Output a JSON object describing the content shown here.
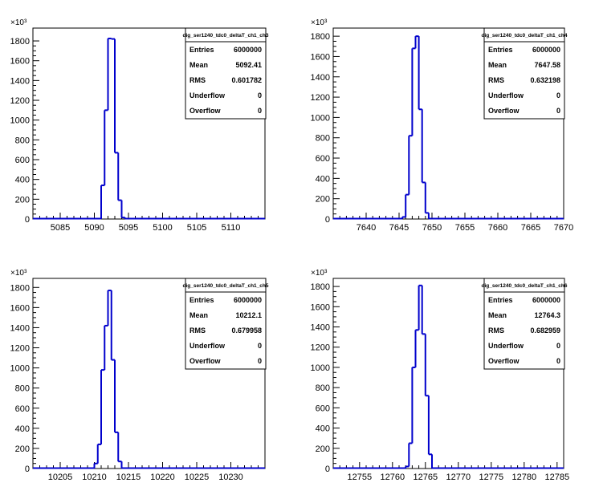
{
  "chart_data": [
    {
      "type": "bar",
      "stats_title": "dig_ser1240_tdc0_deltaT_ch1_ch3",
      "stats": [
        {
          "label": "Entries",
          "value": "6000000"
        },
        {
          "label": "Mean",
          "value": "5092.41"
        },
        {
          "label": "RMS",
          "value": "0.601782"
        },
        {
          "label": "Underflow",
          "value": "0"
        },
        {
          "label": "Overflow",
          "value": "0"
        }
      ],
      "xlim": [
        5081,
        5115
      ],
      "ylim": [
        0,
        1930
      ],
      "y_multiplier": "×10³",
      "xticks": [
        5085,
        5090,
        5095,
        5100,
        5105,
        5110
      ],
      "yticks": [
        0,
        200,
        400,
        600,
        800,
        1000,
        1200,
        1400,
        1600,
        1800
      ],
      "bin_edges": [
        5091,
        5091.5,
        5092,
        5092.5,
        5093,
        5093.5,
        5094,
        5094.5
      ],
      "values": [
        340,
        1100,
        1825,
        1820,
        670,
        190,
        15
      ]
    },
    {
      "type": "bar",
      "stats_title": "dig_ser1240_tdc0_deltaT_ch1_ch4",
      "stats": [
        {
          "label": "Entries",
          "value": "6000000"
        },
        {
          "label": "Mean",
          "value": "7647.58"
        },
        {
          "label": "RMS",
          "value": "0.632198"
        },
        {
          "label": "Underflow",
          "value": "0"
        },
        {
          "label": "Overflow",
          "value": "0"
        }
      ],
      "xlim": [
        7635,
        7670
      ],
      "ylim": [
        0,
        1880
      ],
      "y_multiplier": "×10³",
      "xticks": [
        7640,
        7645,
        7650,
        7655,
        7660,
        7665,
        7670
      ],
      "yticks": [
        0,
        200,
        400,
        600,
        800,
        1000,
        1200,
        1400,
        1600,
        1800
      ],
      "bin_edges": [
        7645.5,
        7646,
        7646.5,
        7647,
        7647.5,
        7648,
        7648.5,
        7649,
        7649.5
      ],
      "values": [
        20,
        240,
        820,
        1680,
        1800,
        1080,
        360,
        60
      ]
    },
    {
      "type": "bar",
      "stats_title": "dig_ser1240_tdc0_deltaT_ch1_ch5",
      "stats": [
        {
          "label": "Entries",
          "value": "6000000"
        },
        {
          "label": "Mean",
          "value": "10212.1"
        },
        {
          "label": "RMS",
          "value": "0.679958"
        },
        {
          "label": "Underflow",
          "value": "0"
        },
        {
          "label": "Overflow",
          "value": "0"
        }
      ],
      "xlim": [
        10201,
        10235
      ],
      "ylim": [
        0,
        1890
      ],
      "y_multiplier": "×10³",
      "xticks": [
        10205,
        10210,
        10215,
        10220,
        10225,
        10230
      ],
      "yticks": [
        0,
        200,
        400,
        600,
        800,
        1000,
        1200,
        1400,
        1600,
        1800
      ],
      "bin_edges": [
        10210,
        10210.5,
        10211,
        10211.5,
        10212,
        10212.5,
        10213,
        10213.5,
        10214
      ],
      "values": [
        50,
        240,
        980,
        1420,
        1770,
        1080,
        360,
        70
      ]
    },
    {
      "type": "bar",
      "stats_title": "dig_ser1240_tdc0_deltaT_ch1_ch6",
      "stats": [
        {
          "label": "Entries",
          "value": "6000000"
        },
        {
          "label": "Mean",
          "value": "12764.3"
        },
        {
          "label": "RMS",
          "value": "0.682959"
        },
        {
          "label": "Underflow",
          "value": "0"
        },
        {
          "label": "Overflow",
          "value": "0"
        }
      ],
      "xlim": [
        12751,
        12786
      ],
      "ylim": [
        0,
        1880
      ],
      "y_multiplier": "×10³",
      "xticks": [
        12755,
        12760,
        12765,
        12770,
        12775,
        12780,
        12785
      ],
      "yticks": [
        0,
        200,
        400,
        600,
        800,
        1000,
        1200,
        1400,
        1600,
        1800
      ],
      "bin_edges": [
        12762,
        12762.5,
        12763,
        12763.5,
        12764,
        12764.5,
        12765,
        12765.5,
        12766
      ],
      "values": [
        20,
        250,
        1000,
        1370,
        1810,
        1330,
        720,
        140
      ]
    }
  ]
}
